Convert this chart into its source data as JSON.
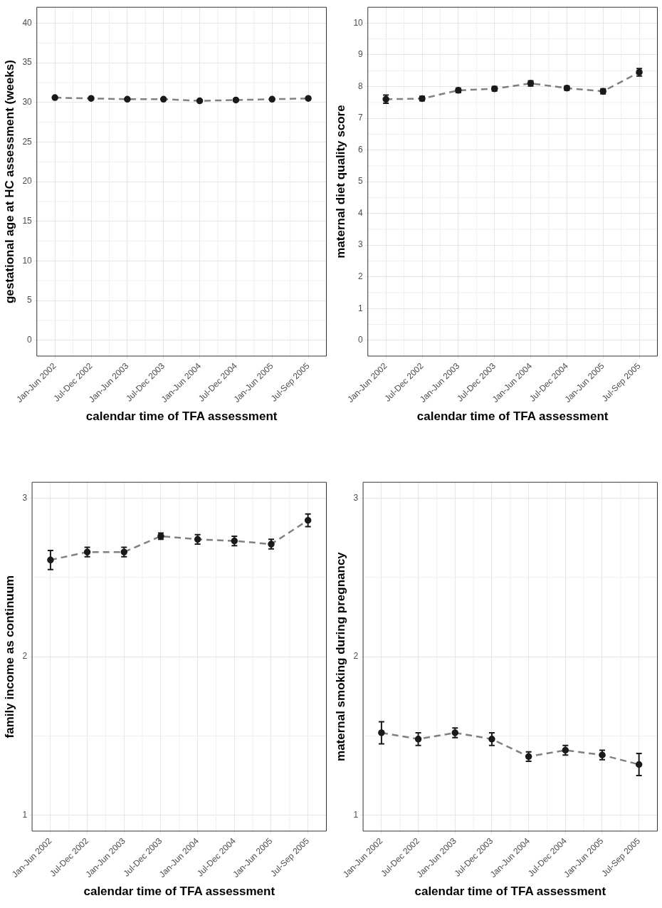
{
  "chart_data": [
    {
      "type": "line",
      "xlabel": "calendar time of TFA assessment",
      "ylabel": "gestational age at HC assessment (weeks)",
      "categories": [
        "Jan-Jun 2002",
        "Jul-Dec 2002",
        "Jan-Jun 2003",
        "Jul-Dec 2003",
        "Jan-Jun 2004",
        "Jul-Dec 2004",
        "Jan-Jun 2005",
        "Jul-Sep 2005"
      ],
      "series": [
        {
          "color": "#1a1a1a",
          "values": [
            30.6,
            30.5,
            30.4,
            30.4,
            30.2,
            30.3,
            30.4,
            30.5
          ]
        }
      ],
      "ylim": [
        -2,
        42
      ],
      "yticks": [
        0,
        5,
        10,
        15,
        20,
        25,
        30,
        35,
        40
      ],
      "grid": true,
      "legend": false,
      "marker": "circle",
      "line_style": "dashed"
    },
    {
      "type": "line",
      "xlabel": "calendar time of TFA assessment",
      "ylabel": "maternal diet quality score",
      "categories": [
        "Jan-Jun 2002",
        "Jul-Dec 2002",
        "Jan-Jun 2003",
        "Jul-Dec 2003",
        "Jan-Jun 2004",
        "Jul-Dec 2004",
        "Jan-Jun 2005",
        "Jul-Sep 2005"
      ],
      "series": [
        {
          "color": "#1a1a1a",
          "values": [
            7.6,
            7.62,
            7.88,
            7.93,
            8.1,
            7.95,
            7.85,
            8.45
          ],
          "errors": [
            0.13,
            0.07,
            0.07,
            0.07,
            0.08,
            0.07,
            0.08,
            0.12
          ]
        }
      ],
      "ylim": [
        -0.5,
        10.5
      ],
      "yticks": [
        0,
        1,
        2,
        3,
        4,
        5,
        6,
        7,
        8,
        9,
        10
      ],
      "grid": true,
      "legend": false,
      "marker": "circle",
      "line_style": "dashed"
    },
    {
      "type": "line",
      "xlabel": "calendar time of TFA assessment",
      "ylabel": "family income as continuum",
      "categories": [
        "Jan-Jun 2002",
        "Jul-Dec 2002",
        "Jan-Jun 2003",
        "Jul-Dec 2003",
        "Jan-Jun 2004",
        "Jul-Dec 2004",
        "Jan-Jun 2005",
        "Jul-Sep 2005"
      ],
      "series": [
        {
          "color": "#1a1a1a",
          "values": [
            2.61,
            2.66,
            2.66,
            2.76,
            2.74,
            2.73,
            2.71,
            2.86
          ],
          "errors": [
            0.06,
            0.03,
            0.03,
            0.02,
            0.03,
            0.03,
            0.03,
            0.04
          ]
        }
      ],
      "ylim": [
        0.9,
        3.1
      ],
      "yticks": [
        1,
        2,
        3
      ],
      "grid": true,
      "legend": false,
      "marker": "circle",
      "line_style": "dashed"
    },
    {
      "type": "line",
      "xlabel": "calendar time of TFA assessment",
      "ylabel": "maternal smoking during pregnancy",
      "categories": [
        "Jan-Jun 2002",
        "Jul-Dec 2002",
        "Jan-Jun 2003",
        "Jul-Dec 2003",
        "Jan-Jun 2004",
        "Jul-Dec 2004",
        "Jan-Jun 2005",
        "Jul-Sep 2005"
      ],
      "series": [
        {
          "color": "#1a1a1a",
          "values": [
            1.52,
            1.48,
            1.52,
            1.48,
            1.37,
            1.41,
            1.38,
            1.32
          ],
          "errors": [
            0.07,
            0.04,
            0.03,
            0.04,
            0.03,
            0.03,
            0.03,
            0.07
          ]
        }
      ],
      "ylim": [
        0.9,
        3.1
      ],
      "yticks": [
        1,
        2,
        3
      ],
      "grid": true,
      "legend": false,
      "marker": "circle",
      "line_style": "dashed"
    }
  ]
}
